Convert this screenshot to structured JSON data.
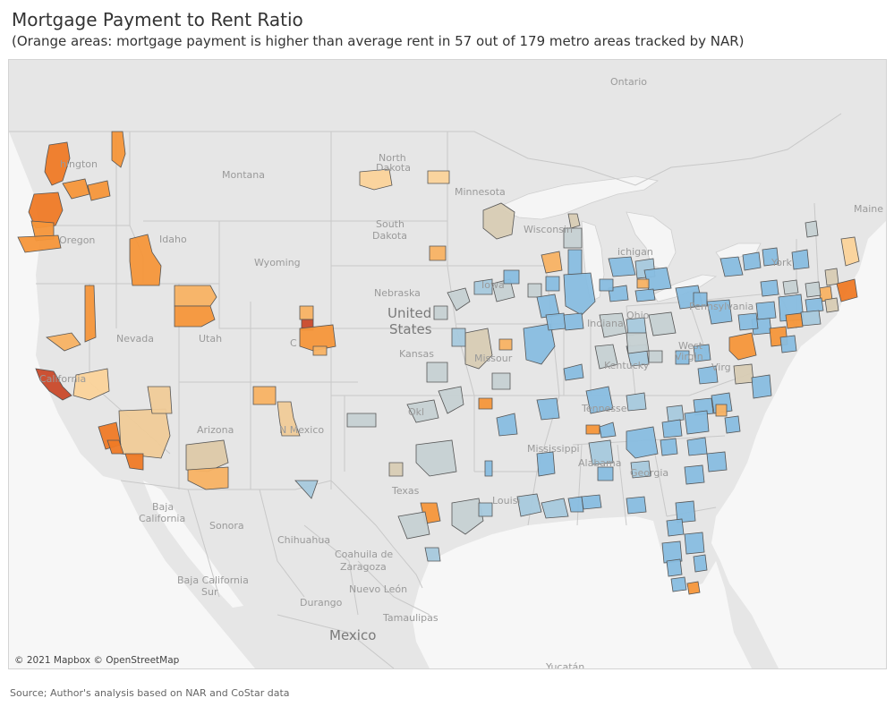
{
  "title": "Mortgage Payment to Rent Ratio",
  "subtitle": "(Orange areas: mortgage payment is higher than average rent in 57 out of 179 metro areas tracked by NAR)",
  "attribution": "© 2021 Mapbox © OpenStreetMap",
  "source": "Source; Author's analysis based on NAR and CoStar data",
  "colors": {
    "ocean": "#f7f7f7",
    "land": "#e6e6e6",
    "lake": "#f5f5f5",
    "above": [
      "#fbd39a",
      "#f8b263",
      "#f5963a",
      "#ef7a26",
      "#c9492a"
    ],
    "below": [
      "#d8ccb4",
      "#c6d1d3",
      "#a6c9dd",
      "#88bde0"
    ]
  },
  "map_labels": {
    "ontario": "Ontario",
    "maine": "Maine",
    "washington": "hington",
    "montana": "Montana",
    "north_dakota_1": "North",
    "north_dakota_2": "Dakota",
    "minnesota": "Minnesota",
    "south_dakota_1": "South",
    "south_dakota_2": "Dakota",
    "wisconsin": "Wisconsin",
    "michigan": "ichigan",
    "oregon": "Oregon",
    "idaho": "Idaho",
    "wyoming": "Wyoming",
    "york": "York",
    "iowa": "Iowa",
    "nebraska": "Nebraska",
    "pennsylvania": "Pennsylvania",
    "united_states_1": "United",
    "united_states_2": "States",
    "nevada": "Nevada",
    "utah": "Utah",
    "colorado": "C",
    "kansas": "Kansas",
    "missouri": "Missour",
    "indiana": "Indiana",
    "ohio": "Ohio",
    "west_virginia_1": "West",
    "west_virginia_2": "Virgin",
    "virginia": "Virg",
    "kentucky": "Kentucky",
    "california": "California",
    "oklahoma": "Okl",
    "tennessee": "Tennesse",
    "arizona": "Arizona",
    "new_mexico": "N  Mexico",
    "mississippi": "Mississippi",
    "alabama": "Alabama",
    "georgia": "Georgia",
    "texas": "Texas",
    "louisiana": "Louisi",
    "baja_california_1": "Baja",
    "baja_california_2": "California",
    "sonora": "Sonora",
    "chihuahua": "Chihuahua",
    "coahuila_1": "Coahuila de",
    "coahuila_2": "Zaragoza",
    "baja_california_sur_1": "Baja California",
    "baja_california_sur_2": "Sur",
    "nuevo_leon": "Nuevo León",
    "durango": "Durango",
    "tamaulipas": "Tamaulipas",
    "mexico": "Mexico",
    "yucatan": "Yucatán"
  }
}
